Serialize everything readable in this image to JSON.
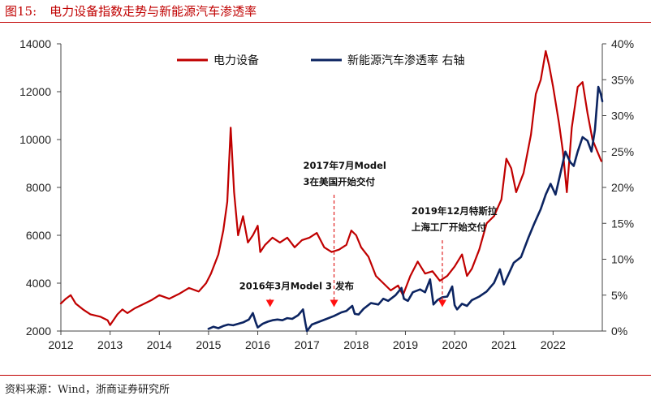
{
  "figure": {
    "number": "图15:",
    "title": "电力设备指数走势与新能源汽车渗透率",
    "source": "资料来源：Wind，浙商证券研究所"
  },
  "chart_data": {
    "type": "line",
    "title": "电力设备指数走势与新能源汽车渗透率",
    "colors": {
      "index": "#c00000",
      "penetration": "#0c2461"
    },
    "x_range": [
      2012.0,
      2023.0
    ],
    "x_ticks": [
      "2012",
      "2013",
      "2014",
      "2015",
      "2016",
      "2017",
      "2018",
      "2019",
      "2020",
      "2021",
      "2022"
    ],
    "y_left": {
      "range": [
        2000,
        14000
      ],
      "ticks": [
        "2000",
        "4000",
        "6000",
        "8000",
        "10000",
        "12000",
        "14000"
      ]
    },
    "y_right": {
      "range": [
        0,
        40
      ],
      "ticks": [
        "0%",
        "5%",
        "10%",
        "15%",
        "20%",
        "25%",
        "30%",
        "35%",
        "40%"
      ]
    },
    "legend_position": "top",
    "series": [
      {
        "name": "电力设备",
        "axis": "left",
        "points": [
          [
            2012.0,
            3150
          ],
          [
            2012.1,
            3350
          ],
          [
            2012.2,
            3500
          ],
          [
            2012.3,
            3150
          ],
          [
            2012.45,
            2900
          ],
          [
            2012.6,
            2700
          ],
          [
            2012.8,
            2600
          ],
          [
            2012.95,
            2450
          ],
          [
            2013.0,
            2250
          ],
          [
            2013.15,
            2700
          ],
          [
            2013.25,
            2900
          ],
          [
            2013.35,
            2750
          ],
          [
            2013.5,
            2950
          ],
          [
            2013.7,
            3150
          ],
          [
            2013.85,
            3300
          ],
          [
            2014.0,
            3500
          ],
          [
            2014.2,
            3350
          ],
          [
            2014.4,
            3550
          ],
          [
            2014.6,
            3800
          ],
          [
            2014.8,
            3650
          ],
          [
            2014.95,
            4000
          ],
          [
            2015.05,
            4400
          ],
          [
            2015.2,
            5200
          ],
          [
            2015.3,
            6200
          ],
          [
            2015.38,
            7400
          ],
          [
            2015.45,
            10500
          ],
          [
            2015.52,
            7800
          ],
          [
            2015.6,
            6000
          ],
          [
            2015.7,
            6800
          ],
          [
            2015.8,
            5700
          ],
          [
            2015.9,
            6000
          ],
          [
            2016.0,
            6400
          ],
          [
            2016.05,
            5300
          ],
          [
            2016.15,
            5600
          ],
          [
            2016.3,
            5900
          ],
          [
            2016.45,
            5700
          ],
          [
            2016.6,
            5900
          ],
          [
            2016.75,
            5500
          ],
          [
            2016.9,
            5800
          ],
          [
            2017.05,
            5900
          ],
          [
            2017.2,
            6100
          ],
          [
            2017.35,
            5500
          ],
          [
            2017.5,
            5300
          ],
          [
            2017.65,
            5400
          ],
          [
            2017.8,
            5600
          ],
          [
            2017.9,
            6200
          ],
          [
            2018.0,
            6000
          ],
          [
            2018.1,
            5500
          ],
          [
            2018.25,
            5100
          ],
          [
            2018.4,
            4300
          ],
          [
            2018.55,
            4000
          ],
          [
            2018.7,
            3700
          ],
          [
            2018.85,
            3900
          ],
          [
            2018.95,
            3500
          ],
          [
            2019.1,
            4300
          ],
          [
            2019.25,
            4900
          ],
          [
            2019.4,
            4400
          ],
          [
            2019.55,
            4500
          ],
          [
            2019.7,
            4100
          ],
          [
            2019.85,
            4300
          ],
          [
            2020.0,
            4700
          ],
          [
            2020.15,
            5200
          ],
          [
            2020.25,
            4300
          ],
          [
            2020.35,
            4600
          ],
          [
            2020.5,
            5400
          ],
          [
            2020.65,
            6500
          ],
          [
            2020.8,
            6800
          ],
          [
            2020.95,
            7500
          ],
          [
            2021.05,
            9200
          ],
          [
            2021.15,
            8800
          ],
          [
            2021.25,
            7800
          ],
          [
            2021.4,
            8600
          ],
          [
            2021.55,
            10200
          ],
          [
            2021.65,
            11900
          ],
          [
            2021.75,
            12500
          ],
          [
            2021.85,
            13700
          ],
          [
            2021.92,
            13100
          ],
          [
            2022.0,
            12200
          ],
          [
            2022.12,
            10700
          ],
          [
            2022.2,
            9500
          ],
          [
            2022.28,
            7800
          ],
          [
            2022.38,
            10500
          ],
          [
            2022.5,
            12200
          ],
          [
            2022.6,
            12400
          ],
          [
            2022.7,
            11100
          ],
          [
            2022.8,
            10000
          ],
          [
            2022.9,
            9500
          ],
          [
            2022.98,
            9100
          ]
        ]
      },
      {
        "name": "新能源汽车渗透率 右轴",
        "axis": "right",
        "points": [
          [
            2015.0,
            0.3
          ],
          [
            2015.1,
            0.6
          ],
          [
            2015.2,
            0.4
          ],
          [
            2015.3,
            0.7
          ],
          [
            2015.4,
            0.9
          ],
          [
            2015.5,
            0.8
          ],
          [
            2015.6,
            1.0
          ],
          [
            2015.7,
            1.2
          ],
          [
            2015.82,
            1.6
          ],
          [
            2015.9,
            2.5
          ],
          [
            2015.96,
            1.2
          ],
          [
            2016.0,
            0.5
          ],
          [
            2016.1,
            1.0
          ],
          [
            2016.2,
            1.3
          ],
          [
            2016.3,
            1.5
          ],
          [
            2016.4,
            1.6
          ],
          [
            2016.5,
            1.5
          ],
          [
            2016.6,
            1.8
          ],
          [
            2016.7,
            1.7
          ],
          [
            2016.82,
            2.2
          ],
          [
            2016.92,
            3.0
          ],
          [
            2016.97,
            1.0
          ],
          [
            2017.0,
            0.0
          ],
          [
            2017.1,
            0.9
          ],
          [
            2017.25,
            1.3
          ],
          [
            2017.4,
            1.7
          ],
          [
            2017.55,
            2.1
          ],
          [
            2017.7,
            2.6
          ],
          [
            2017.8,
            2.8
          ],
          [
            2017.92,
            3.5
          ],
          [
            2017.97,
            2.4
          ],
          [
            2018.05,
            2.3
          ],
          [
            2018.15,
            3.1
          ],
          [
            2018.3,
            3.9
          ],
          [
            2018.45,
            3.7
          ],
          [
            2018.55,
            4.5
          ],
          [
            2018.65,
            4.2
          ],
          [
            2018.8,
            5.0
          ],
          [
            2018.92,
            6.0
          ],
          [
            2018.97,
            4.5
          ],
          [
            2019.05,
            4.2
          ],
          [
            2019.15,
            5.4
          ],
          [
            2019.3,
            5.8
          ],
          [
            2019.4,
            5.4
          ],
          [
            2019.5,
            7.2
          ],
          [
            2019.57,
            3.7
          ],
          [
            2019.65,
            4.3
          ],
          [
            2019.75,
            4.7
          ],
          [
            2019.85,
            4.8
          ],
          [
            2019.95,
            6.2
          ],
          [
            2020.0,
            3.6
          ],
          [
            2020.05,
            3.0
          ],
          [
            2020.15,
            3.8
          ],
          [
            2020.25,
            3.5
          ],
          [
            2020.35,
            4.3
          ],
          [
            2020.5,
            4.8
          ],
          [
            2020.65,
            5.5
          ],
          [
            2020.8,
            6.7
          ],
          [
            2020.92,
            8.6
          ],
          [
            2021.0,
            6.5
          ],
          [
            2021.08,
            7.7
          ],
          [
            2021.2,
            9.5
          ],
          [
            2021.35,
            10.3
          ],
          [
            2021.5,
            13.0
          ],
          [
            2021.62,
            15.0
          ],
          [
            2021.75,
            17.0
          ],
          [
            2021.85,
            19.0
          ],
          [
            2021.95,
            20.5
          ],
          [
            2022.05,
            19.0
          ],
          [
            2022.15,
            22.0
          ],
          [
            2022.25,
            25.0
          ],
          [
            2022.35,
            23.5
          ],
          [
            2022.42,
            23.0
          ],
          [
            2022.5,
            25.0
          ],
          [
            2022.6,
            27.0
          ],
          [
            2022.7,
            26.5
          ],
          [
            2022.78,
            25.0
          ],
          [
            2022.85,
            28.0
          ],
          [
            2022.92,
            34.0
          ],
          [
            2022.97,
            33.0
          ],
          [
            2023.0,
            32.0
          ]
        ]
      }
    ],
    "annotations": [
      {
        "lines": [
          "2016年3月Model 3 发布"
        ],
        "anchor": [
          2016.25,
          3000
        ],
        "label_at": [
          2016.25,
          3750
        ]
      },
      {
        "lines": [
          "2017年7月Model",
          "3在美国开始交付"
        ],
        "anchor": [
          2017.55,
          3000
        ],
        "label_at": [
          2017.55,
          8100
        ]
      },
      {
        "lines": [
          "2019年12月特斯拉",
          "上海工厂开始交付"
        ],
        "anchor": [
          2019.75,
          3000
        ],
        "label_at": [
          2019.75,
          6200
        ]
      }
    ]
  }
}
